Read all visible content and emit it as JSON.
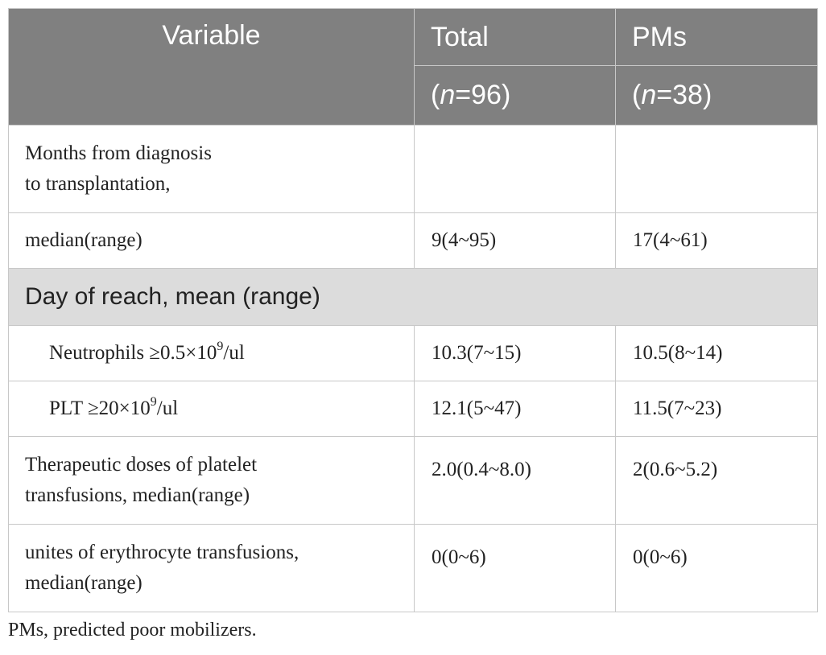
{
  "table": {
    "header": {
      "variable": "Variable",
      "total_label": "Total",
      "total_n": "96",
      "pms_label": "PMs",
      "pms_n": "38",
      "n_prefix": "(",
      "n_symbol": "n",
      "n_equals": "=",
      "n_suffix": ")"
    },
    "rows": {
      "months_line1": "Months from diagnosis",
      "months_line2": "to transplantation,",
      "median_label": "median(range)",
      "median_total": "9(4~95)",
      "median_pms": "17(4~61)",
      "section_title": "Day of reach, mean (range)",
      "neutrophils_pre": "Neutrophils ≥0.5×10",
      "neutrophils_sup": "9",
      "neutrophils_post": "/ul",
      "neutrophils_total": "10.3(7~15)",
      "neutrophils_pms": "10.5(8~14)",
      "plt_pre": "PLT ≥20×10",
      "plt_sup": "9",
      "plt_post": "/ul",
      "plt_total": "12.1(5~47)",
      "plt_pms": "11.5(7~23)",
      "platelet_line1": "Therapeutic doses of platelet",
      "platelet_line2": "transfusions, median(range)",
      "platelet_total": "2.0(0.4~8.0)",
      "platelet_pms": "2(0.6~5.2)",
      "erythro_line1": "unites of erythrocyte transfusions,",
      "erythro_line2": "median(range)",
      "erythro_total": "0(0~6)",
      "erythro_pms": "0(0~6)"
    }
  },
  "footnote": "PMs, predicted poor mobilizers."
}
